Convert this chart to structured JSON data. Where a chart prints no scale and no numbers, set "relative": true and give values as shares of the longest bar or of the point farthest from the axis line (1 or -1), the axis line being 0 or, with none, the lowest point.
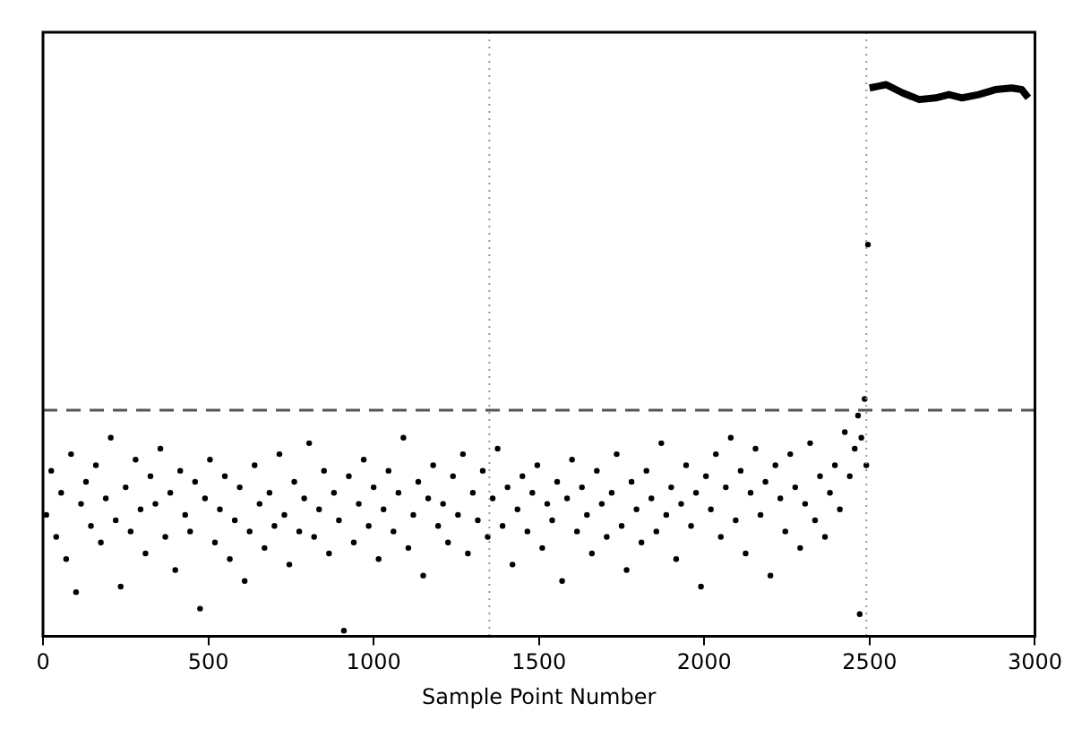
{
  "chart_data": {
    "type": "scatter",
    "xlabel": "Sample Point Number",
    "relative": true,
    "xlim": [
      0,
      3000
    ],
    "xticks": [
      0,
      500,
      1000,
      1500,
      2000,
      2500,
      3000
    ],
    "marker": "circle",
    "series": [
      {
        "color": "#000000",
        "x": [
          10,
          25,
          40,
          55,
          70,
          85,
          100,
          115,
          130,
          145,
          160,
          175,
          190,
          205,
          220,
          235,
          250,
          265,
          280,
          295,
          310,
          325,
          340,
          355,
          370,
          385,
          400,
          415,
          430,
          445,
          460,
          475,
          490,
          505,
          520,
          535,
          550,
          565,
          580,
          595,
          610,
          625,
          640,
          655,
          670,
          685,
          700,
          715,
          730,
          745,
          760,
          775,
          790,
          805,
          820,
          835,
          850,
          865,
          880,
          895,
          910,
          925,
          940,
          955,
          970,
          985,
          1000,
          1015,
          1030,
          1045,
          1060,
          1075,
          1090,
          1105,
          1120,
          1135,
          1150,
          1165,
          1180,
          1195,
          1210,
          1225,
          1240,
          1255,
          1270,
          1285,
          1300,
          1315,
          1330,
          1345,
          1360,
          1375,
          1390,
          1405,
          1420,
          1435,
          1450,
          1465,
          1480,
          1495,
          1510,
          1525,
          1540,
          1555,
          1570,
          1585,
          1600,
          1615,
          1630,
          1645,
          1660,
          1675,
          1690,
          1705,
          1720,
          1735,
          1750,
          1765,
          1780,
          1795,
          1810,
          1825,
          1840,
          1855,
          1870,
          1885,
          1900,
          1915,
          1930,
          1945,
          1960,
          1975,
          1990,
          2005,
          2020,
          2035,
          2050,
          2065,
          2080,
          2095,
          2110,
          2125,
          2140,
          2155,
          2170,
          2185,
          2200,
          2215,
          2230,
          2245,
          2260,
          2275,
          2290,
          2305,
          2320,
          2335,
          2350,
          2365,
          2380,
          2395,
          2410,
          2425,
          2440,
          2455,
          2465,
          2475,
          2485,
          2490,
          2470,
          2495
        ],
        "values": [
          0.22,
          0.3,
          0.18,
          0.26,
          0.14,
          0.33,
          0.08,
          0.24,
          0.28,
          0.2,
          0.31,
          0.17,
          0.25,
          0.36,
          0.21,
          0.09,
          0.27,
          0.19,
          0.32,
          0.23,
          0.15,
          0.29,
          0.24,
          0.34,
          0.18,
          0.26,
          0.12,
          0.3,
          0.22,
          0.19,
          0.28,
          0.05,
          0.25,
          0.32,
          0.17,
          0.23,
          0.29,
          0.14,
          0.21,
          0.27,
          0.1,
          0.19,
          0.31,
          0.24,
          0.16,
          0.26,
          0.2,
          0.33,
          0.22,
          0.13,
          0.28,
          0.19,
          0.25,
          0.35,
          0.18,
          0.23,
          0.3,
          0.15,
          0.26,
          0.21,
          0.01,
          0.29,
          0.17,
          0.24,
          0.32,
          0.2,
          0.27,
          0.14,
          0.23,
          0.3,
          0.19,
          0.26,
          0.36,
          0.16,
          0.22,
          0.28,
          0.11,
          0.25,
          0.31,
          0.2,
          0.24,
          0.17,
          0.29,
          0.22,
          0.33,
          0.15,
          0.26,
          0.21,
          0.3,
          0.18,
          0.25,
          0.34,
          0.2,
          0.27,
          0.13,
          0.23,
          0.29,
          0.19,
          0.26,
          0.31,
          0.16,
          0.24,
          0.21,
          0.28,
          0.1,
          0.25,
          0.32,
          0.19,
          0.27,
          0.22,
          0.15,
          0.3,
          0.24,
          0.18,
          0.26,
          0.33,
          0.2,
          0.12,
          0.28,
          0.23,
          0.17,
          0.3,
          0.25,
          0.19,
          0.35,
          0.22,
          0.27,
          0.14,
          0.24,
          0.31,
          0.2,
          0.26,
          0.09,
          0.29,
          0.23,
          0.33,
          0.18,
          0.27,
          0.36,
          0.21,
          0.3,
          0.15,
          0.26,
          0.34,
          0.22,
          0.28,
          0.11,
          0.31,
          0.25,
          0.19,
          0.33,
          0.27,
          0.16,
          0.24,
          0.35,
          0.21,
          0.29,
          0.18,
          0.26,
          0.31,
          0.23,
          0.37,
          0.29,
          0.34,
          0.4,
          0.36,
          0.43,
          0.31,
          0.04,
          0.71
        ]
      },
      {
        "type": "line",
        "marker": "none",
        "color": "#000000",
        "x": [
          2500,
          2525,
          2550,
          2600,
          2650,
          2700,
          2740,
          2780,
          2830,
          2880,
          2930,
          2960,
          2980
        ],
        "values": [
          0.994,
          0.997,
          1,
          0.985,
          0.973,
          0.976,
          0.982,
          0.976,
          0.982,
          0.991,
          0.994,
          0.991,
          0.976
        ]
      }
    ],
    "ref_lines": [
      {
        "axis": "y",
        "value": 0.41,
        "line_style": "dashed",
        "color": "#555555"
      },
      {
        "axis": "x",
        "value": 1350,
        "line_style": "dotted",
        "color": "#999999"
      },
      {
        "axis": "x",
        "value": 2490,
        "line_style": "dotted",
        "color": "#999999"
      }
    ]
  }
}
